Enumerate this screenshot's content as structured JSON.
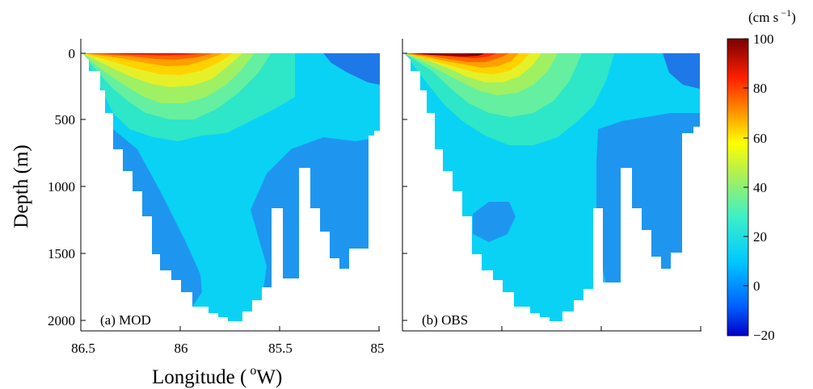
{
  "chart_data": [
    {
      "type": "heatmap",
      "panel_label": "(a) MOD",
      "xlabel_main": "Longitude (",
      "xlabel_sup": "o",
      "xlabel_unit": "W)",
      "ylabel": "Depth (m)",
      "xlim": [
        86.5,
        85
      ],
      "ylim": [
        2070,
        -60
      ],
      "x_ticks": [
        "86.5",
        "86",
        "85.5",
        "85"
      ],
      "y_ticks": [
        "0",
        "500",
        "1000",
        "1500",
        "2000"
      ],
      "fields": "velocity contours of cross-section: maximum near surface at west (~100 cm s-1), decreasing to ~0–10 at depth, negative pockets in east"
    },
    {
      "type": "heatmap",
      "panel_label": "(b) OBS",
      "xlim": [
        86.5,
        85
      ],
      "ylim": [
        2070,
        -60
      ]
    }
  ],
  "colorbar": {
    "unit_main": "(cm s",
    "unit_sup": "−1",
    "unit_close": ")",
    "ticks": [
      "100",
      "80",
      "60",
      "40",
      "20",
      "0",
      "−20"
    ],
    "vmin": -20,
    "vmax": 100
  }
}
